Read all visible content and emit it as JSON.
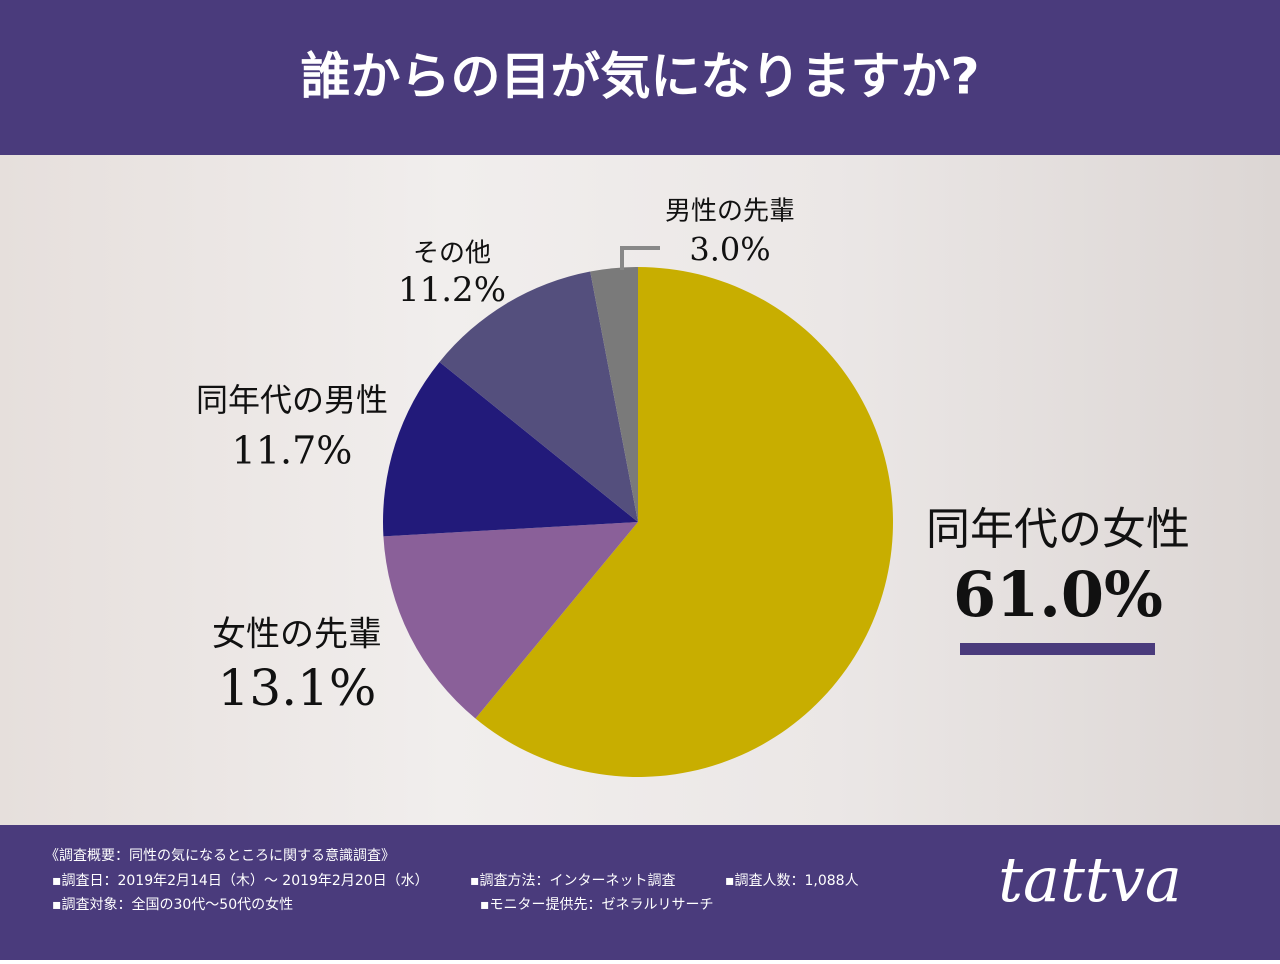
{
  "chart_data": {
    "type": "pie",
    "title": "誰からの目が気になりますか?",
    "categories": [
      "同年代の女性",
      "女性の先輩",
      "同年代の男性",
      "その他",
      "男性の先輩"
    ],
    "values": [
      61.0,
      13.1,
      11.7,
      11.2,
      3.0
    ],
    "value_labels": [
      "61.0%",
      "13.1%",
      "11.7%",
      "11.2%",
      "3.0%"
    ],
    "colors": [
      "#c8ae00",
      "#8a6099",
      "#221a7a",
      "#544f7d",
      "#7a7a7a"
    ]
  },
  "footer": {
    "survey_title": "《調査概要：同性の気になるところに関する意識調査》",
    "items": [
      "▪調査日：2019年2月14日（木）〜 2019年2月20日（水）",
      "▪調査方法：インターネット調査",
      "▪調査人数：1,088人",
      "▪調査対象：全国の30代〜50代の女性",
      "▪モニター提供先：ゼネラルリサーチ"
    ],
    "logo": "tattva"
  }
}
